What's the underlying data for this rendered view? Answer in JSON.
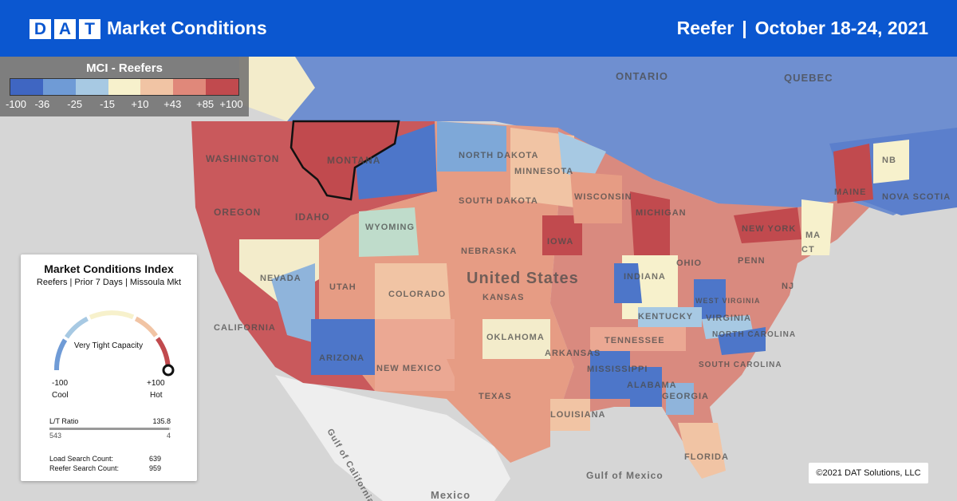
{
  "header": {
    "logo_letters": [
      "D",
      "A",
      "T"
    ],
    "title": "Market Conditions",
    "equipment": "Reefer",
    "separator": "|",
    "date_range": "October 18-24, 2021"
  },
  "legend": {
    "title": "MCI - Reefers",
    "colors": [
      "#3f66c2",
      "#6f9bd6",
      "#a7c9e3",
      "#f7f1cc",
      "#f1c4a4",
      "#e0887a",
      "#c14a4e"
    ],
    "ticks": [
      "-100",
      "-36",
      "-25",
      "-15",
      "+10",
      "+43",
      "+85",
      "+100"
    ]
  },
  "card": {
    "title": "Market Conditions Index",
    "subtitle": "Reefers | Prior 7 Days | Missoula Mkt",
    "gauge_status": "Very Tight Capacity",
    "gauge_min": "-100",
    "gauge_max": "+100",
    "gauge_min_label": "Cool",
    "gauge_max_label": "Hot",
    "gauge_value": 100,
    "lt_ratio_label": "L/T Ratio",
    "lt_ratio_value": "135.8",
    "loads": "543",
    "trucks": "4",
    "load_search_label": "Load Search Count:",
    "load_search_value": "639",
    "reefer_search_label": "Reefer Search Count:",
    "reefer_search_value": "959"
  },
  "map": {
    "country_label": "United States",
    "state_labels": [
      "WASHINGTON",
      "OREGON",
      "IDAHO",
      "MONTANA",
      "NORTH DAKOTA",
      "SOUTH DAKOTA",
      "MINNESOTA",
      "WYOMING",
      "NEVADA",
      "UTAH",
      "COLORADO",
      "NEBRASKA",
      "KANSAS",
      "IOWA",
      "WISCONSIN",
      "MICHIGAN",
      "CALIFORNIA",
      "ARIZONA",
      "NEW MEXICO",
      "OKLAHOMA",
      "TEXAS",
      "ARKANSAS",
      "MISSISSIPPI",
      "ALABAMA",
      "GEORGIA",
      "LOUISIANA",
      "TENNESSEE",
      "KENTUCKY",
      "INDIANA",
      "OHIO",
      "PENN",
      "VIRGINIA",
      "WEST VIRGINIA",
      "NORTH CAROLINA",
      "SOUTH CAROLINA",
      "FLORIDA",
      "NEW YORK",
      "MAINE",
      "ONTARIO",
      "QUEBEC",
      "NB",
      "NOVA SCOTIA",
      "NJ",
      "MA",
      "CT"
    ],
    "water_labels": [
      "Gulf of Mexico",
      "Gulf of California"
    ],
    "other_labels": [
      "Mexico"
    ],
    "highlighted_market": "Missoula Mkt",
    "copyright": "©2021 DAT Solutions, LLC"
  }
}
